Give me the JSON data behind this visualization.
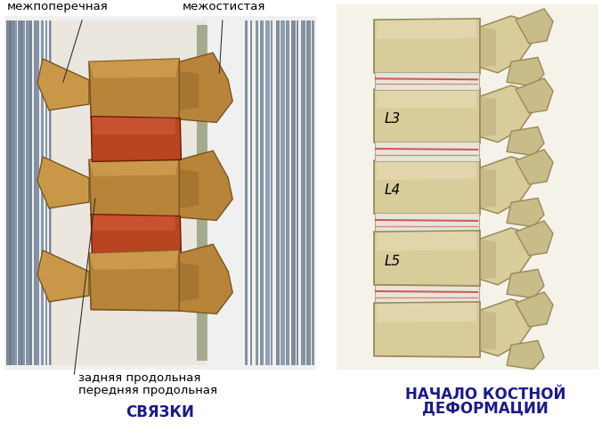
{
  "background_color": "#ffffff",
  "figure_width": 6.85,
  "figure_height": 5.03,
  "dpi": 100,
  "labels": {
    "top_left": "межпоперечная",
    "top_right": "межостистая",
    "bottom_line1": "задняя продольная",
    "bottom_line2": "передняя продольная",
    "title_left": "СВЯЗКИ",
    "L3": "L3",
    "L4": "L4",
    "L5": "L5",
    "title_right_line1": "НАЧАЛО КОСТНОЙ",
    "title_right_line2": "ДЕФОРМАЦИИ"
  },
  "text_color": "#000000",
  "title_color": "#1a1a8c",
  "font_size_small": 9.5,
  "font_size_title": 11,
  "font_size_vertebra": 11
}
